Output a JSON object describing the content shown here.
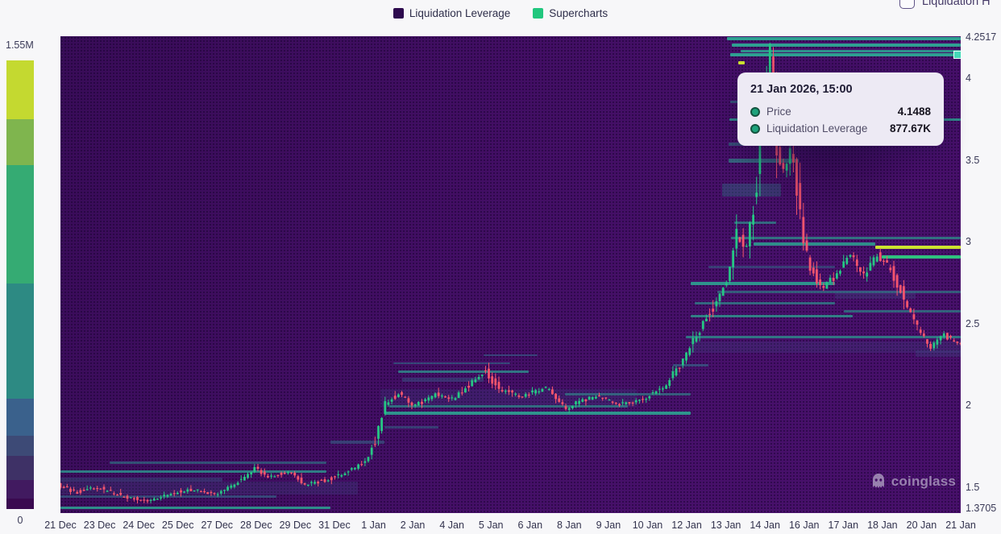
{
  "legend": {
    "items": [
      {
        "label": "Liquidation Leverage",
        "color": "#2d0a4e"
      },
      {
        "label": "Supercharts",
        "color": "#21c77e"
      }
    ]
  },
  "controls": {
    "heatmap_checkbox": {
      "label": "Liquidation H",
      "checked": false
    }
  },
  "colorbar": {
    "max_label": "1.55M",
    "min_label": "0",
    "segments": [
      {
        "color": "#c4d930",
        "h": 73
      },
      {
        "color": "#7fb54e",
        "h": 57
      },
      {
        "color": "#35ab73",
        "h": 147
      },
      {
        "color": "#2d8a83",
        "h": 143
      },
      {
        "color": "#3a618c",
        "h": 46
      },
      {
        "color": "#3d4a76",
        "h": 25
      },
      {
        "color": "#3e3166",
        "h": 30
      },
      {
        "color": "#411a60",
        "h": 23
      },
      {
        "color": "#3a0a50",
        "h": 13
      }
    ]
  },
  "tooltip": {
    "title": "21 Jan 2026, 15:00",
    "rows": [
      {
        "label": "Price",
        "value": "4.1488"
      },
      {
        "label": "Liquidation Leverage",
        "value": "877.67K"
      }
    ]
  },
  "watermark": {
    "text": "coinglass"
  },
  "chart_data": {
    "type": "heatmap",
    "subtype": "liquidation-heatmap-with-candlesticks",
    "x_labels": [
      "21 Dec",
      "23 Dec",
      "24 Dec",
      "25 Dec",
      "27 Dec",
      "28 Dec",
      "29 Dec",
      "31 Dec",
      "1 Jan",
      "2 Jan",
      "4 Jan",
      "5 Jan",
      "6 Jan",
      "8 Jan",
      "9 Jan",
      "10 Jan",
      "12 Jan",
      "13 Jan",
      "14 Jan",
      "16 Jan",
      "17 Jan",
      "18 Jan",
      "20 Jan",
      "21 Jan"
    ],
    "y_axis": {
      "min": 1.3705,
      "max": 4.2517,
      "ticks": [
        {
          "label": "4.2517",
          "value": 4.2517
        },
        {
          "label": "4",
          "value": 4.0
        },
        {
          "label": "3.5",
          "value": 3.5
        },
        {
          "label": "3",
          "value": 3.0
        },
        {
          "label": "2.5",
          "value": 2.5
        },
        {
          "label": "2",
          "value": 2.0
        },
        {
          "label": "1.5",
          "value": 1.5
        },
        {
          "label": "1.3705",
          "value": 1.3705
        }
      ]
    },
    "colorbar_range": {
      "max": "1.55M",
      "min": "0"
    },
    "hover_point": {
      "price": 4.1488,
      "liquidation_leverage": "877.67K",
      "f": 1.0
    },
    "candle_colors": {
      "up": "#26c684",
      "down": "#f5556d"
    },
    "price_path": [
      [
        0,
        1.52
      ],
      [
        0.02,
        1.47
      ],
      [
        0.045,
        1.5
      ],
      [
        0.07,
        1.45
      ],
      [
        0.1,
        1.42
      ],
      [
        0.125,
        1.46
      ],
      [
        0.15,
        1.49
      ],
      [
        0.175,
        1.46
      ],
      [
        0.2,
        1.53
      ],
      [
        0.22,
        1.62
      ],
      [
        0.235,
        1.56
      ],
      [
        0.255,
        1.6
      ],
      [
        0.275,
        1.52
      ],
      [
        0.3,
        1.55
      ],
      [
        0.325,
        1.6
      ],
      [
        0.345,
        1.68
      ],
      [
        0.355,
        1.82
      ],
      [
        0.365,
        2.02
      ],
      [
        0.38,
        2.08
      ],
      [
        0.395,
        2.0
      ],
      [
        0.42,
        2.07
      ],
      [
        0.44,
        2.04
      ],
      [
        0.465,
        2.17
      ],
      [
        0.475,
        2.22
      ],
      [
        0.49,
        2.1
      ],
      [
        0.515,
        2.06
      ],
      [
        0.545,
        2.11
      ],
      [
        0.565,
        1.98
      ],
      [
        0.58,
        2.03
      ],
      [
        0.6,
        2.06
      ],
      [
        0.625,
        2.01
      ],
      [
        0.65,
        2.04
      ],
      [
        0.675,
        2.12
      ],
      [
        0.695,
        2.28
      ],
      [
        0.715,
        2.48
      ],
      [
        0.73,
        2.62
      ],
      [
        0.745,
        2.78
      ],
      [
        0.755,
        3.05
      ],
      [
        0.765,
        2.95
      ],
      [
        0.775,
        3.25
      ],
      [
        0.785,
        3.85
      ],
      [
        0.792,
        4.18
      ],
      [
        0.8,
        3.55
      ],
      [
        0.808,
        3.42
      ],
      [
        0.815,
        3.58
      ],
      [
        0.825,
        3.15
      ],
      [
        0.835,
        2.86
      ],
      [
        0.85,
        2.72
      ],
      [
        0.865,
        2.8
      ],
      [
        0.88,
        2.94
      ],
      [
        0.895,
        2.78
      ],
      [
        0.91,
        2.92
      ],
      [
        0.925,
        2.84
      ],
      [
        0.94,
        2.66
      ],
      [
        0.955,
        2.48
      ],
      [
        0.97,
        2.36
      ],
      [
        0.985,
        2.44
      ],
      [
        1,
        2.38
      ]
    ],
    "liquidation_bands": [
      {
        "f0": 0.0,
        "f1": 0.33,
        "p": 1.5,
        "th": 16,
        "c": "#3a5a8a",
        "a": 0.22
      },
      {
        "f0": 0.0,
        "f1": 0.295,
        "p": 1.6,
        "th": 3,
        "c": "#2e8f8c",
        "a": 0.85
      },
      {
        "f0": 0.0,
        "f1": 0.3,
        "p": 1.38,
        "th": 3,
        "c": "#2e9b8f",
        "a": 0.9
      },
      {
        "f0": 0.0,
        "f1": 0.24,
        "p": 1.445,
        "th": 3,
        "c": "#33708c",
        "a": 0.6
      },
      {
        "f0": 0.0,
        "f1": 0.18,
        "p": 1.55,
        "th": 5,
        "c": "#365f88",
        "a": 0.4
      },
      {
        "f0": 0.055,
        "f1": 0.295,
        "p": 1.655,
        "th": 3,
        "c": "#317e8a",
        "a": 0.6
      },
      {
        "f0": 0.3,
        "f1": 0.36,
        "p": 1.78,
        "th": 4,
        "c": "#33708c",
        "a": 0.5
      },
      {
        "f0": 0.355,
        "f1": 0.64,
        "p": 2.05,
        "th": 22,
        "c": "#3a5a8a",
        "a": 0.18
      },
      {
        "f0": 0.36,
        "f1": 0.7,
        "p": 1.955,
        "th": 4,
        "c": "#2e9b8f",
        "a": 0.95
      },
      {
        "f0": 0.365,
        "f1": 0.63,
        "p": 2.0,
        "th": 3,
        "c": "#2e8f8c",
        "a": 0.7
      },
      {
        "f0": 0.375,
        "f1": 0.52,
        "p": 2.21,
        "th": 3,
        "c": "#2e8f8c",
        "a": 0.8
      },
      {
        "f0": 0.37,
        "f1": 0.5,
        "p": 2.26,
        "th": 2,
        "c": "#33708c",
        "a": 0.6
      },
      {
        "f0": 0.38,
        "f1": 0.47,
        "p": 2.16,
        "th": 5,
        "c": "#365f88",
        "a": 0.45
      },
      {
        "f0": 0.47,
        "f1": 0.53,
        "p": 2.31,
        "th": 2,
        "c": "#33708c",
        "a": 0.55
      },
      {
        "f0": 0.56,
        "f1": 0.7,
        "p": 2.07,
        "th": 3,
        "c": "#2e8f8c",
        "a": 0.6
      },
      {
        "f0": 0.36,
        "f1": 0.42,
        "p": 1.87,
        "th": 3,
        "c": "#33708c",
        "a": 0.5
      },
      {
        "f0": 0.68,
        "f1": 0.72,
        "p": 2.25,
        "th": 3,
        "c": "#33708c",
        "a": 0.6
      },
      {
        "f0": 0.695,
        "f1": 1.0,
        "p": 2.42,
        "th": 3,
        "c": "#2e8f8c",
        "a": 0.8
      },
      {
        "f0": 0.7,
        "f1": 1.0,
        "p": 2.36,
        "th": 14,
        "c": "#3a5a8a",
        "a": 0.2
      },
      {
        "f0": 0.7,
        "f1": 0.88,
        "p": 2.55,
        "th": 3,
        "c": "#2e9b8f",
        "a": 0.8
      },
      {
        "f0": 0.705,
        "f1": 0.86,
        "p": 2.63,
        "th": 3,
        "c": "#2e8f8c",
        "a": 0.7
      },
      {
        "f0": 0.7,
        "f1": 0.86,
        "p": 2.75,
        "th": 4,
        "c": "#2e9b8f",
        "a": 0.95
      },
      {
        "f0": 0.73,
        "f1": 1.0,
        "p": 2.7,
        "th": 3,
        "c": "#2e8f8c",
        "a": 0.6
      },
      {
        "f0": 0.72,
        "f1": 0.86,
        "p": 2.85,
        "th": 3,
        "c": "#33708c",
        "a": 0.5
      },
      {
        "f0": 0.77,
        "f1": 0.905,
        "p": 2.99,
        "th": 4,
        "c": "#2e9b8f",
        "a": 0.9
      },
      {
        "f0": 0.905,
        "f1": 1.0,
        "p": 2.97,
        "th": 4,
        "c": "#cde32f",
        "a": 1
      },
      {
        "f0": 0.912,
        "f1": 1.0,
        "p": 2.91,
        "th": 4,
        "c": "#2ecc80",
        "a": 0.95
      },
      {
        "f0": 0.745,
        "f1": 1.0,
        "p": 3.03,
        "th": 3,
        "c": "#2e9b8f",
        "a": 0.7
      },
      {
        "f0": 0.748,
        "f1": 0.795,
        "p": 3.12,
        "th": 3,
        "c": "#2e8f8c",
        "a": 0.7
      },
      {
        "f0": 0.735,
        "f1": 0.8,
        "p": 3.32,
        "th": 16,
        "c": "#2d7f8a",
        "a": 0.35
      },
      {
        "f0": 0.742,
        "f1": 0.82,
        "p": 3.5,
        "th": 5,
        "c": "#2e9b8f",
        "a": 0.6
      },
      {
        "f0": 0.742,
        "f1": 0.8,
        "p": 3.6,
        "th": 4,
        "c": "#2e8f8c",
        "a": 0.5
      },
      {
        "f0": 0.743,
        "f1": 1.0,
        "p": 3.75,
        "th": 3,
        "c": "#2e9b8f",
        "a": 0.9
      },
      {
        "f0": 0.744,
        "f1": 0.8,
        "p": 3.86,
        "th": 3,
        "c": "#2e8f8c",
        "a": 0.55
      },
      {
        "f0": 0.74,
        "f1": 1.0,
        "p": 4.245,
        "th": 4,
        "c": "#2ea895",
        "a": 0.95
      },
      {
        "f0": 0.746,
        "f1": 1.0,
        "p": 4.205,
        "th": 4,
        "c": "#2ea895",
        "a": 0.95
      },
      {
        "f0": 0.756,
        "f1": 1.0,
        "p": 4.168,
        "th": 3,
        "c": "#2ea895",
        "a": 0.85
      },
      {
        "f0": 0.744,
        "f1": 1.0,
        "p": 4.1488,
        "th": 4,
        "c": "#2ea895",
        "a": 0.95
      },
      {
        "f0": 0.753,
        "f1": 0.76,
        "p": 4.1,
        "th": 4,
        "c": "#cde32f",
        "a": 1
      },
      {
        "f0": 0.86,
        "f1": 0.95,
        "p": 2.68,
        "th": 10,
        "c": "#3a5a8a",
        "a": 0.25
      },
      {
        "f0": 0.87,
        "f1": 1.0,
        "p": 2.58,
        "th": 3,
        "c": "#2e8f8c",
        "a": 0.65
      },
      {
        "f0": 0.95,
        "f1": 1.0,
        "p": 2.32,
        "th": 8,
        "c": "#3a5a8a",
        "a": 0.25
      }
    ]
  }
}
